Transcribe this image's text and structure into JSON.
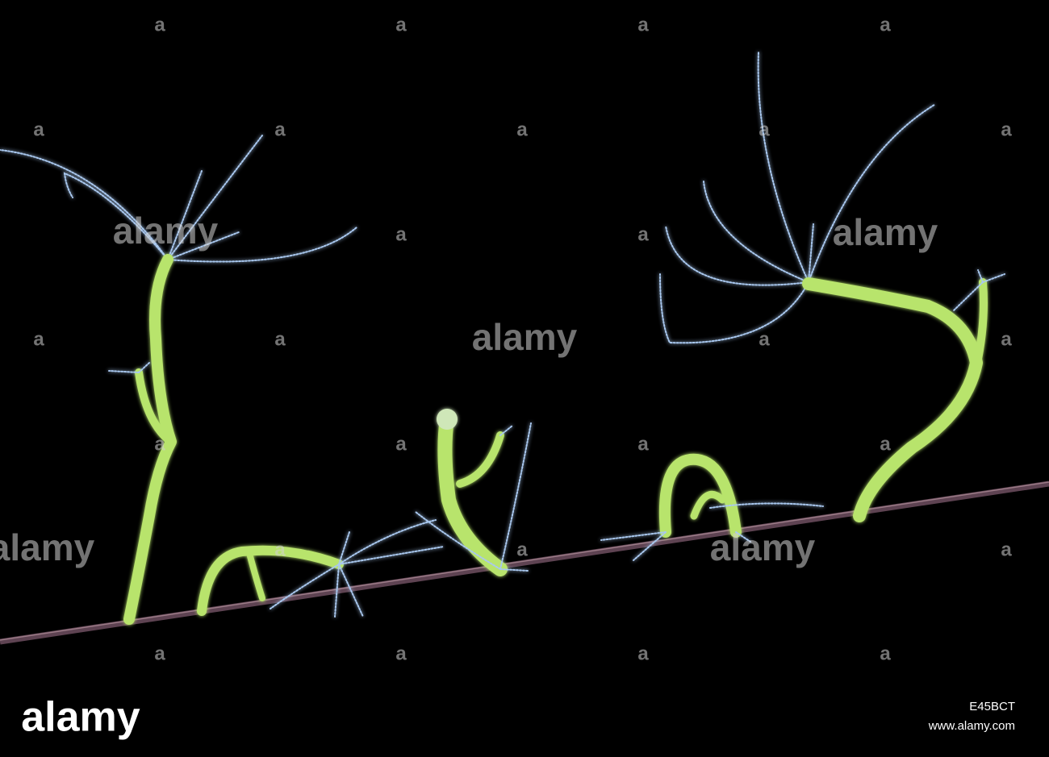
{
  "watermark": "alamy",
  "tile_mark": "a",
  "image_id": "E45BCT",
  "url": "www.alamy.com"
}
